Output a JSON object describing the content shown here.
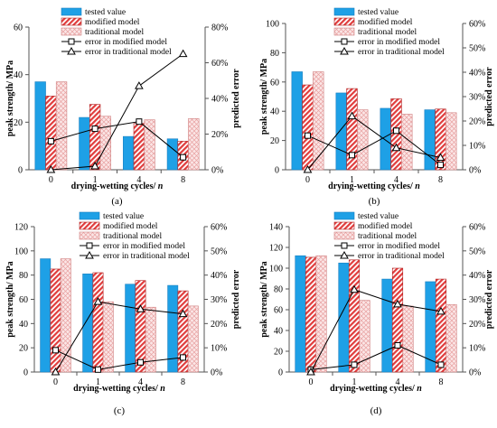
{
  "chart_data": [
    {
      "type": "bar",
      "panel_label": "(a)",
      "categories": [
        "0",
        "1",
        "4",
        "8"
      ],
      "xlabel": "drying-wetting cycles/ n",
      "ylabel": "peak strength/ MPa",
      "ylabel_right": "predicted error",
      "ylim": [
        0,
        60
      ],
      "yticks": [
        "0",
        "20",
        "40",
        "60"
      ],
      "ylim_right": [
        0,
        80
      ],
      "yticks_right": [
        "0%",
        "20%",
        "40%",
        "60%",
        "80%"
      ],
      "series": [
        {
          "name": "tested value",
          "values": [
            37.0,
            22.0,
            14.0,
            13.0
          ]
        },
        {
          "name": "modified model",
          "values": [
            31.0,
            27.5,
            19.5,
            12.0
          ]
        },
        {
          "name": "traditional model",
          "values": [
            37.0,
            22.5,
            21.0,
            21.5
          ]
        }
      ],
      "error_series": [
        {
          "name": "error in modified model",
          "values": [
            16,
            23,
            27,
            7
          ]
        },
        {
          "name": "error in traditional model",
          "values": [
            0,
            2,
            47,
            65
          ]
        }
      ]
    },
    {
      "type": "bar",
      "panel_label": "(b)",
      "categories": [
        "0",
        "1",
        "4",
        "8"
      ],
      "xlabel": "drying-wetting cycles/ n",
      "ylabel": "peak strength/ MPa",
      "ylabel_right": "predicted error",
      "ylim": [
        0,
        100
      ],
      "yticks": [
        "0",
        "20",
        "40",
        "60",
        "80",
        "100"
      ],
      "ylim_right": [
        0,
        60
      ],
      "yticks_right": [
        "0%",
        "10%",
        "20%",
        "30%",
        "40%",
        "50%",
        "60%"
      ],
      "series": [
        {
          "name": "tested value",
          "values": [
            67.0,
            52.5,
            42.0,
            41.0
          ]
        },
        {
          "name": "modified model",
          "values": [
            58.0,
            55.5,
            48.5,
            41.5
          ]
        },
        {
          "name": "traditional model",
          "values": [
            67.0,
            41.0,
            38.0,
            39.0
          ]
        }
      ],
      "error_series": [
        {
          "name": "error in modified model",
          "values": [
            14,
            6,
            16,
            2
          ]
        },
        {
          "name": "error in traditional model",
          "values": [
            0,
            22,
            9,
            5
          ]
        }
      ]
    },
    {
      "type": "bar",
      "panel_label": "(c)",
      "categories": [
        "0",
        "1",
        "4",
        "8"
      ],
      "xlabel": "drying-wetting cycles/ n",
      "ylabel": "peak strength/ MPa",
      "ylabel_right": "predicted error",
      "ylim": [
        0,
        120
      ],
      "yticks": [
        "0",
        "20",
        "40",
        "60",
        "80",
        "100",
        "120"
      ],
      "ylim_right": [
        0,
        60
      ],
      "yticks_right": [
        "0%",
        "10%",
        "20%",
        "30%",
        "40%",
        "50%",
        "60%"
      ],
      "series": [
        {
          "name": "tested value",
          "values": [
            93.5,
            81.0,
            72.5,
            71.5
          ]
        },
        {
          "name": "modified model",
          "values": [
            85.0,
            82.0,
            75.5,
            67.0
          ]
        },
        {
          "name": "traditional model",
          "values": [
            93.5,
            58.0,
            53.5,
            54.5
          ]
        }
      ],
      "error_series": [
        {
          "name": "error in modified model",
          "values": [
            9,
            1,
            4,
            6
          ]
        },
        {
          "name": "error in traditional model",
          "values": [
            0,
            29,
            26,
            24
          ]
        }
      ]
    },
    {
      "type": "bar",
      "panel_label": "(d)",
      "categories": [
        "0",
        "1",
        "4",
        "8"
      ],
      "xlabel": "drying-wetting cycles/ n",
      "ylabel": "peak strength/ MPa",
      "ylabel_right": "predicted error",
      "ylim": [
        0,
        140
      ],
      "yticks": [
        "0",
        "20",
        "40",
        "60",
        "80",
        "100",
        "120",
        "140"
      ],
      "ylim_right": [
        0,
        60
      ],
      "yticks_right": [
        "0%",
        "10%",
        "20%",
        "30%",
        "40%",
        "50%",
        "60%"
      ],
      "series": [
        {
          "name": "tested value",
          "values": [
            112.0,
            105.0,
            89.5,
            87.0
          ]
        },
        {
          "name": "modified model",
          "values": [
            110.5,
            108.0,
            100.0,
            89.5
          ]
        },
        {
          "name": "traditional model",
          "values": [
            112.0,
            69.0,
            63.5,
            65.0
          ]
        }
      ],
      "error_series": [
        {
          "name": "error in modified model",
          "values": [
            1,
            3,
            11,
            3
          ]
        },
        {
          "name": "error in traditional model",
          "values": [
            0,
            34,
            28,
            25
          ]
        }
      ]
    }
  ],
  "colors": {
    "tested": "#1ea0e6",
    "modified": "#e03c3c",
    "traditional": "#f0a0a0",
    "axis": "#555555",
    "text": "#000000"
  }
}
